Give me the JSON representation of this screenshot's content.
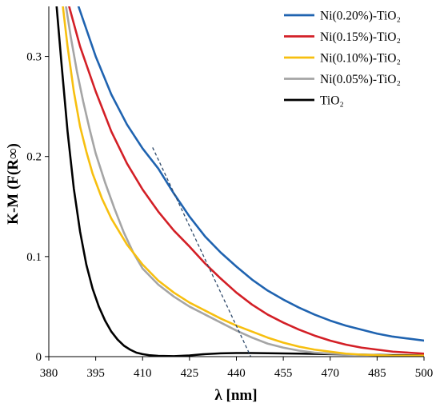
{
  "chart_data": {
    "type": "line",
    "title": "",
    "xlabel": "λ [nm]",
    "ylabel": "K-M (F(R∞)",
    "xlim": [
      380,
      500
    ],
    "ylim": [
      0,
      0.35
    ],
    "x_ticks": [
      "380",
      "395",
      "410",
      "425",
      "440",
      "455",
      "470",
      "485",
      "500"
    ],
    "y_ticks": [
      "0",
      "0.1",
      "0.2",
      "0.3"
    ],
    "grid": false,
    "legend_position": "top-right",
    "series": [
      {
        "name": "Ni(0.20%)-TiO₂",
        "color": "#1f63b0",
        "points": [
          [
            389.5,
            0.35
          ],
          [
            395,
            0.3
          ],
          [
            400,
            0.262
          ],
          [
            405,
            0.232
          ],
          [
            410,
            0.208
          ],
          [
            415,
            0.188
          ],
          [
            420,
            0.163
          ],
          [
            425,
            0.14
          ],
          [
            430,
            0.12
          ],
          [
            435,
            0.104
          ],
          [
            440,
            0.09
          ],
          [
            445,
            0.077
          ],
          [
            450,
            0.066
          ],
          [
            455,
            0.057
          ],
          [
            460,
            0.049
          ],
          [
            465,
            0.042
          ],
          [
            470,
            0.036
          ],
          [
            475,
            0.031
          ],
          [
            480,
            0.027
          ],
          [
            485,
            0.023
          ],
          [
            490,
            0.02
          ],
          [
            495,
            0.018
          ],
          [
            500,
            0.016
          ]
        ]
      },
      {
        "name": "Ni(0.15%)-TiO₂",
        "color": "#d31f26",
        "points": [
          [
            386.5,
            0.35
          ],
          [
            390,
            0.31
          ],
          [
            395,
            0.265
          ],
          [
            400,
            0.225
          ],
          [
            405,
            0.193
          ],
          [
            410,
            0.167
          ],
          [
            415,
            0.145
          ],
          [
            420,
            0.126
          ],
          [
            425,
            0.11
          ],
          [
            430,
            0.093
          ],
          [
            435,
            0.078
          ],
          [
            440,
            0.064
          ],
          [
            445,
            0.052
          ],
          [
            450,
            0.042
          ],
          [
            455,
            0.034
          ],
          [
            460,
            0.027
          ],
          [
            465,
            0.021
          ],
          [
            470,
            0.016
          ],
          [
            475,
            0.012
          ],
          [
            480,
            0.009
          ],
          [
            485,
            0.007
          ],
          [
            490,
            0.005
          ],
          [
            495,
            0.004
          ],
          [
            500,
            0.003
          ]
        ]
      },
      {
        "name": "Ni(0.10%)-TiO₂",
        "color": "#f7bf0f",
        "points": [
          [
            384.5,
            0.35
          ],
          [
            386,
            0.31
          ],
          [
            388,
            0.265
          ],
          [
            390,
            0.23
          ],
          [
            392,
            0.205
          ],
          [
            394,
            0.183
          ],
          [
            397,
            0.158
          ],
          [
            400,
            0.138
          ],
          [
            405,
            0.112
          ],
          [
            410,
            0.092
          ],
          [
            415,
            0.076
          ],
          [
            420,
            0.064
          ],
          [
            425,
            0.054
          ],
          [
            430,
            0.046
          ],
          [
            435,
            0.038
          ],
          [
            440,
            0.031
          ],
          [
            445,
            0.025
          ],
          [
            450,
            0.019
          ],
          [
            455,
            0.014
          ],
          [
            460,
            0.01
          ],
          [
            465,
            0.007
          ],
          [
            470,
            0.005
          ],
          [
            475,
            0.003
          ],
          [
            480,
            0.002
          ],
          [
            490,
            0.001
          ],
          [
            500,
            0.001
          ]
        ]
      },
      {
        "name": "Ni(0.05%)-TiO₂",
        "color": "#a5a5a5",
        "points": [
          [
            385.5,
            0.35
          ],
          [
            387,
            0.32
          ],
          [
            389,
            0.285
          ],
          [
            391,
            0.255
          ],
          [
            393,
            0.228
          ],
          [
            395,
            0.203
          ],
          [
            398,
            0.174
          ],
          [
            401,
            0.148
          ],
          [
            404,
            0.124
          ],
          [
            407,
            0.104
          ],
          [
            410,
            0.088
          ],
          [
            415,
            0.072
          ],
          [
            420,
            0.06
          ],
          [
            425,
            0.05
          ],
          [
            430,
            0.042
          ],
          [
            435,
            0.034
          ],
          [
            440,
            0.026
          ],
          [
            445,
            0.019
          ],
          [
            450,
            0.013
          ],
          [
            455,
            0.009
          ],
          [
            460,
            0.006
          ],
          [
            465,
            0.004
          ],
          [
            470,
            0.003
          ],
          [
            480,
            0.002
          ],
          [
            490,
            0.001
          ],
          [
            500,
            0.001
          ]
        ]
      },
      {
        "name": "TiO₂",
        "color": "#000000",
        "points": [
          [
            382.5,
            0.35
          ],
          [
            384,
            0.295
          ],
          [
            386,
            0.225
          ],
          [
            388,
            0.168
          ],
          [
            390,
            0.125
          ],
          [
            392,
            0.092
          ],
          [
            394,
            0.068
          ],
          [
            396,
            0.05
          ],
          [
            398,
            0.036
          ],
          [
            400,
            0.025
          ],
          [
            402,
            0.017
          ],
          [
            404,
            0.011
          ],
          [
            406,
            0.007
          ],
          [
            408,
            0.004
          ],
          [
            410,
            0.0025
          ],
          [
            412,
            0.0015
          ],
          [
            415,
            0.0008
          ],
          [
            420,
            0.0005
          ],
          [
            425,
            0.0012
          ],
          [
            430,
            0.0025
          ],
          [
            435,
            0.0033
          ],
          [
            440,
            0.0036
          ],
          [
            445,
            0.0036
          ],
          [
            450,
            0.0034
          ],
          [
            460,
            0.003
          ],
          [
            470,
            0.0025
          ],
          [
            480,
            0.002
          ],
          [
            490,
            0.0015
          ],
          [
            500,
            0.0012
          ]
        ]
      }
    ],
    "annotations": [
      {
        "type": "dashed-tangent",
        "color": "#2f4a6b",
        "points": [
          [
            413.2,
            0.209
          ],
          [
            444.6,
            0.0
          ]
        ]
      }
    ]
  }
}
